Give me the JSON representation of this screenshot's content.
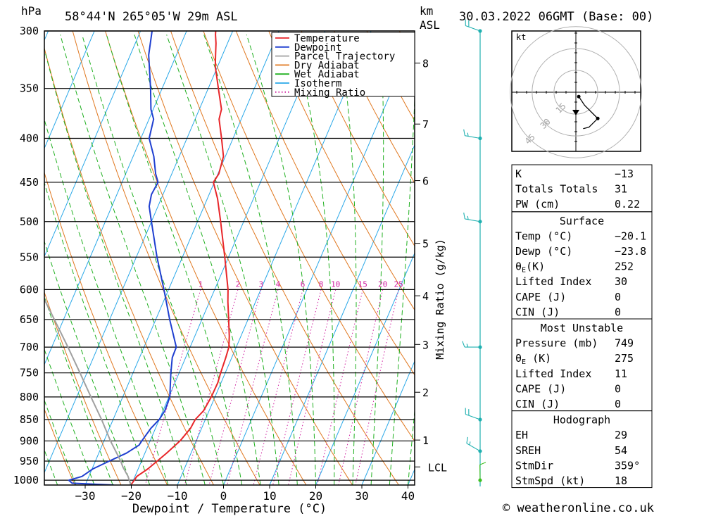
{
  "header": {
    "hpa_label": "hPa",
    "location": "58°44'N 265°05'W 29m ASL",
    "km_label": "km",
    "asl_label": "ASL",
    "datetime": "30.03.2022 06GMT (Base: 00)"
  },
  "footer": {
    "credit": "© weatheronline.co.uk"
  },
  "chart_data": {
    "type": "line",
    "subtype": "skew-T log-P",
    "xlabel": "Dewpoint / Temperature (°C)",
    "ylabel": "hPa",
    "ylabel_right": "Mixing Ratio (g/kg)",
    "x_ticks": [
      -30,
      -20,
      -10,
      0,
      10,
      20,
      30,
      40
    ],
    "pressure_levels": [
      300,
      350,
      400,
      450,
      500,
      550,
      600,
      650,
      700,
      750,
      800,
      850,
      900,
      950,
      1000
    ],
    "km_ticks": [
      {
        "label": "8",
        "p": 327
      },
      {
        "label": "7",
        "p": 385
      },
      {
        "label": "6",
        "p": 448
      },
      {
        "label": "5",
        "p": 530
      },
      {
        "label": "4",
        "p": 610
      },
      {
        "label": "3",
        "p": 695
      },
      {
        "label": "2",
        "p": 790
      },
      {
        "label": "1",
        "p": 898
      },
      {
        "label": "LCL",
        "p": 965
      }
    ],
    "mixing_ratio_labels": [
      "1",
      "2",
      "3",
      "4",
      "6",
      "8",
      "10",
      "15",
      "20",
      "25"
    ],
    "mixing_ratio_values": [
      1,
      2,
      3,
      4,
      6,
      8,
      10,
      15,
      20,
      25
    ],
    "mixing_ratio_label_p": 600,
    "legend": [
      "Temperature",
      "Dewpoint",
      "Parcel Trajectory",
      "Dry Adiabat",
      "Wet Adiabat",
      "Isotherm",
      "Mixing Ratio"
    ],
    "legend_position": "top-right",
    "colors": {
      "temperature": "#e8262a",
      "dewpoint": "#1f3fd0",
      "parcel": "#a0a0a0",
      "dry_adiabat": "#e07820",
      "wet_adiabat": "#20b020",
      "isotherm": "#2aa8e8",
      "mixing_ratio": "#d020a0",
      "wind": "#20b0b0",
      "hodograph": "#000000"
    },
    "series": [
      {
        "name": "Temperature",
        "points": [
          [
            1013,
            -20.1
          ],
          [
            1000,
            -19.8
          ],
          [
            990,
            -19.6
          ],
          [
            970,
            -17.9
          ],
          [
            950,
            -16.6
          ],
          [
            930,
            -15.3
          ],
          [
            900,
            -13.5
          ],
          [
            870,
            -12.4
          ],
          [
            850,
            -12.2
          ],
          [
            830,
            -11.2
          ],
          [
            800,
            -10.8
          ],
          [
            770,
            -10.7
          ],
          [
            750,
            -11.0
          ],
          [
            720,
            -11.3
          ],
          [
            700,
            -11.6
          ],
          [
            680,
            -12.5
          ],
          [
            650,
            -14.2
          ],
          [
            620,
            -16.0
          ],
          [
            600,
            -17.1
          ],
          [
            550,
            -20.8
          ],
          [
            500,
            -25.0
          ],
          [
            470,
            -27.8
          ],
          [
            450,
            -30.2
          ],
          [
            440,
            -29.8
          ],
          [
            420,
            -30.4
          ],
          [
            400,
            -32.5
          ],
          [
            380,
            -34.8
          ],
          [
            370,
            -35.2
          ],
          [
            350,
            -37.8
          ],
          [
            330,
            -40.5
          ],
          [
            320,
            -41.5
          ],
          [
            310,
            -42.5
          ],
          [
            303,
            -43.4
          ],
          [
            300,
            -43.7
          ]
        ]
      },
      {
        "name": "Dewpoint",
        "points": [
          [
            1013,
            -23.8
          ],
          [
            1008,
            -33.0
          ],
          [
            1000,
            -34.0
          ],
          [
            990,
            -31.5
          ],
          [
            970,
            -29.8
          ],
          [
            950,
            -27.0
          ],
          [
            930,
            -24.0
          ],
          [
            910,
            -22.0
          ],
          [
            900,
            -21.8
          ],
          [
            870,
            -21.0
          ],
          [
            850,
            -20.0
          ],
          [
            830,
            -19.6
          ],
          [
            800,
            -19.8
          ],
          [
            750,
            -21.8
          ],
          [
            720,
            -22.9
          ],
          [
            700,
            -23.0
          ],
          [
            650,
            -27.0
          ],
          [
            600,
            -31.0
          ],
          [
            550,
            -35.5
          ],
          [
            500,
            -40.0
          ],
          [
            480,
            -41.9
          ],
          [
            465,
            -42.5
          ],
          [
            450,
            -42.2
          ],
          [
            440,
            -43.5
          ],
          [
            420,
            -45.5
          ],
          [
            400,
            -48.2
          ],
          [
            380,
            -49.0
          ],
          [
            370,
            -50.5
          ],
          [
            350,
            -52.5
          ],
          [
            320,
            -56.0
          ],
          [
            300,
            -57.5
          ]
        ]
      },
      {
        "name": "Parcel Trajectory",
        "points": [
          [
            1013,
            -20.1
          ],
          [
            990,
            -21.5
          ],
          [
            965,
            -23.5
          ],
          [
            950,
            -24.5
          ],
          [
            900,
            -28.6
          ],
          [
            850,
            -32.5
          ],
          [
            800,
            -36.9
          ],
          [
            750,
            -41.5
          ],
          [
            700,
            -46.5
          ],
          [
            650,
            -52.0
          ],
          [
            600,
            -58.0
          ]
        ]
      }
    ],
    "wind_profile": [
      {
        "p": 300,
        "dir": 290,
        "spd": 20
      },
      {
        "p": 400,
        "dir": 280,
        "spd": 15
      },
      {
        "p": 500,
        "dir": 280,
        "spd": 15
      },
      {
        "p": 700,
        "dir": 270,
        "spd": 15
      },
      {
        "p": 850,
        "dir": 290,
        "spd": 20
      },
      {
        "p": 925,
        "dir": 300,
        "spd": 15
      },
      {
        "p": 1000,
        "dir": 359,
        "spd": 10
      }
    ],
    "hodograph": {
      "unit": "kt",
      "rings": [
        15,
        30,
        45
      ],
      "ring_labels": [
        "15",
        "30",
        "45"
      ],
      "points": [
        [
          2,
          -3
        ],
        [
          6,
          -9
        ],
        [
          15,
          -18
        ],
        [
          9,
          -24
        ],
        [
          5,
          -25
        ]
      ],
      "storm_motion": [
        0,
        -14
      ]
    },
    "indices": {
      "general": [
        {
          "label": "K",
          "value": "-13"
        },
        {
          "label": "Totals Totals",
          "value": "31"
        },
        {
          "label": "PW (cm)",
          "value": "0.22"
        }
      ],
      "surface": {
        "title": "Surface",
        "rows": [
          {
            "label": "Temp (°C)",
            "value": "-20.1"
          },
          {
            "label": "Dewp (°C)",
            "value": "-23.8"
          },
          {
            "label": "θE(K)",
            "value": "252"
          },
          {
            "label": "Lifted Index",
            "value": "30"
          },
          {
            "label": "CAPE (J)",
            "value": "0"
          },
          {
            "label": "CIN (J)",
            "value": "0"
          }
        ]
      },
      "most_unstable": {
        "title": "Most Unstable",
        "rows": [
          {
            "label": "Pressure (mb)",
            "value": "749"
          },
          {
            "label": "θE (K)",
            "value": "275"
          },
          {
            "label": "Lifted Index",
            "value": "11"
          },
          {
            "label": "CAPE (J)",
            "value": "0"
          },
          {
            "label": "CIN (J)",
            "value": "0"
          }
        ]
      },
      "hodograph_stats": {
        "title": "Hodograph",
        "rows": [
          {
            "label": "EH",
            "value": "29"
          },
          {
            "label": "SREH",
            "value": "54"
          },
          {
            "label": "StmDir",
            "value": "359°"
          },
          {
            "label": "StmSpd (kt)",
            "value": "18"
          }
        ]
      }
    }
  }
}
